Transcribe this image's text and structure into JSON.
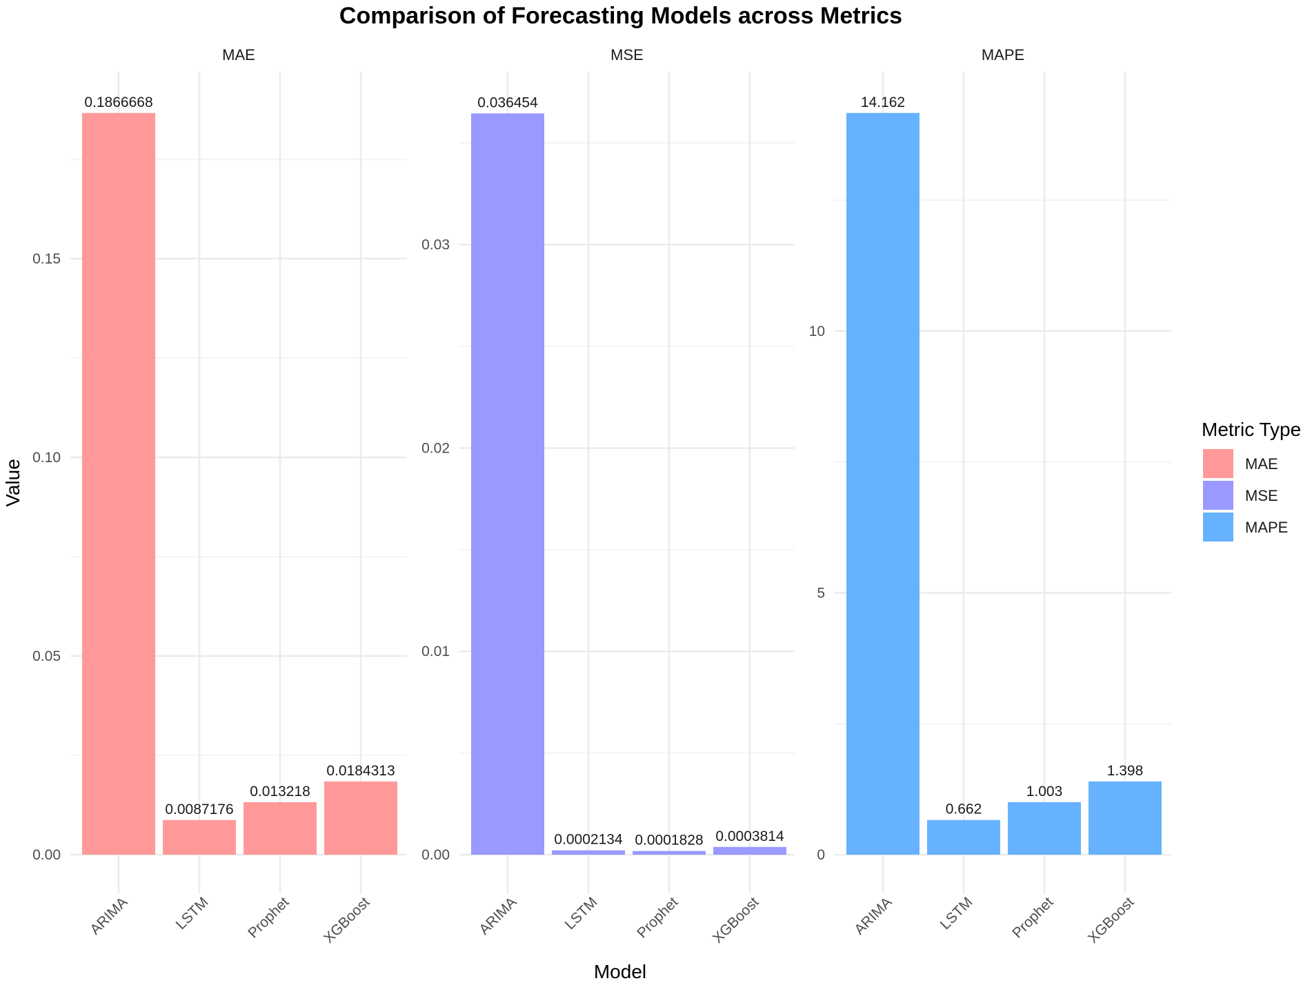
{
  "chart_data": {
    "type": "bar",
    "title": "Comparison of Forecasting Models across Metrics",
    "xlabel": "Model",
    "ylabel": "Value",
    "categories": [
      "ARIMA",
      "LSTM",
      "Prophet",
      "XGBoost"
    ],
    "grid": true,
    "legend": {
      "title": "Metric Type",
      "placement": "right",
      "entries": [
        "MAE",
        "MSE",
        "MAPE"
      ]
    },
    "facets": [
      {
        "name": "MAE",
        "color": "#FF9999",
        "values": [
          0.1866668,
          0.0087176,
          0.013218,
          0.0184313
        ],
        "labels": [
          "0.1866668",
          "0.0087176",
          "0.013218",
          "0.0184313"
        ],
        "ylim": [
          0,
          0.196
        ],
        "yticks": [
          0.0,
          0.05,
          0.1,
          0.15
        ],
        "ytick_labels": [
          "0.00",
          "0.05",
          "0.10",
          "0.15"
        ],
        "minor_ticks": [
          0.025,
          0.075,
          0.125,
          0.175
        ]
      },
      {
        "name": "MSE",
        "color": "#9999FF",
        "values": [
          0.036454,
          0.0002134,
          0.0001828,
          0.0003814
        ],
        "labels": [
          "0.036454",
          "0.0002134",
          "0.0001828",
          "0.0003814"
        ],
        "ylim": [
          0,
          0.0383
        ],
        "yticks": [
          0.0,
          0.01,
          0.02,
          0.03
        ],
        "ytick_labels": [
          "0.00",
          "0.01",
          "0.02",
          "0.03"
        ],
        "minor_ticks": [
          0.005,
          0.015,
          0.025,
          0.035
        ]
      },
      {
        "name": "MAPE",
        "color": "#66B2FF",
        "values": [
          14.162,
          0.662,
          1.003,
          1.398
        ],
        "labels": [
          "14.162",
          "0.662",
          "1.003",
          "1.398"
        ],
        "ylim": [
          0,
          14.87
        ],
        "yticks": [
          0,
          5,
          10
        ],
        "ytick_labels": [
          "0",
          "5",
          "10"
        ],
        "minor_ticks": [
          2.5,
          7.5,
          12.5
        ]
      }
    ]
  }
}
